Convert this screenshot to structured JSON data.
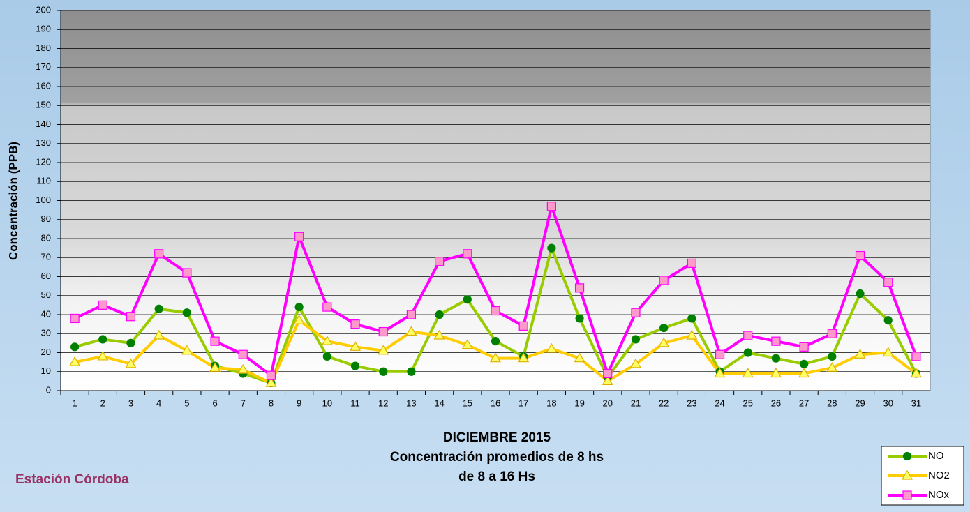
{
  "chart_data": {
    "type": "line",
    "title": "DICIEMBRE 2015",
    "subtitle": [
      "Concentración promedios de 8 hs",
      "de 8 a 16 Hs"
    ],
    "annotation": "Estación Córdoba",
    "y_label": "Concentración (PPB)",
    "categories": [
      1,
      2,
      3,
      4,
      5,
      6,
      7,
      8,
      9,
      10,
      11,
      12,
      13,
      14,
      15,
      16,
      17,
      18,
      19,
      20,
      21,
      22,
      23,
      24,
      25,
      26,
      27,
      28,
      29,
      30,
      31
    ],
    "series": [
      {
        "name": "NO",
        "color": "#99cc00",
        "marker": "circle",
        "marker_color": "#008000",
        "values": [
          23,
          27,
          25,
          43,
          41,
          13,
          9,
          4,
          44,
          18,
          13,
          10,
          10,
          40,
          48,
          26,
          18,
          75,
          38,
          7,
          27,
          33,
          38,
          10,
          20,
          17,
          14,
          18,
          51,
          37,
          9
        ]
      },
      {
        "name": "NO2",
        "color": "#ffcc00",
        "marker": "triangle",
        "marker_color": "#ffff66",
        "values": [
          15,
          18,
          14,
          29,
          21,
          12,
          11,
          4,
          37,
          26,
          23,
          21,
          31,
          29,
          24,
          17,
          17,
          22,
          17,
          5,
          14,
          25,
          29,
          9,
          9,
          9,
          9,
          12,
          19,
          20,
          9
        ]
      },
      {
        "name": "NOx",
        "color": "#ff00ff",
        "marker": "square",
        "marker_color": "#ff99cc",
        "values": [
          38,
          45,
          39,
          72,
          62,
          26,
          19,
          8,
          81,
          44,
          35,
          31,
          40,
          68,
          72,
          42,
          34,
          97,
          54,
          9,
          41,
          58,
          67,
          19,
          29,
          26,
          23,
          30,
          71,
          57,
          18
        ]
      }
    ],
    "ylim": [
      0,
      200
    ],
    "yticks": [
      0,
      10,
      20,
      30,
      40,
      50,
      60,
      70,
      80,
      90,
      100,
      110,
      120,
      130,
      140,
      150,
      160,
      170,
      180,
      190,
      200
    ],
    "grid": true,
    "legend": "bottom-right"
  }
}
